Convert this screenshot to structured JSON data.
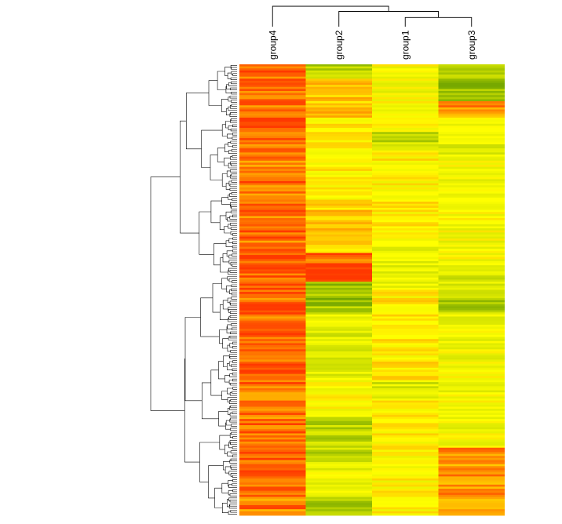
{
  "chart_data": {
    "type": "heatmap",
    "title": "",
    "xlabel": "",
    "ylabel": "",
    "columns": [
      "group4",
      "group2",
      "group1",
      "group3"
    ],
    "column_dendrogram": {
      "merges": [
        {
          "left": "group1",
          "right": "group3",
          "height": 0.45
        },
        {
          "left": "group2",
          "right": "group1+group3",
          "height": 0.75
        },
        {
          "left": "group4",
          "right": "group2+group1+group3",
          "height": 1.0
        }
      ]
    },
    "color_scale": {
      "low": "#6aa000",
      "mid_low": "#cfe000",
      "mid": "#ffff00",
      "mid_high": "#ffb000",
      "high": "#ff3800",
      "range": [
        -1,
        1
      ]
    },
    "row_count": 220,
    "row_dendrogram": {
      "top_cluster_fraction": 0.47
    },
    "column_profiles": [
      {
        "column": "group4",
        "segments": [
          [
            0,
            0.12,
            0.75
          ],
          [
            0.12,
            0.15,
            0.95
          ],
          [
            0.15,
            0.25,
            0.7
          ],
          [
            0.25,
            0.42,
            0.78
          ],
          [
            0.42,
            0.48,
            0.85
          ],
          [
            0.48,
            0.72,
            0.82
          ],
          [
            0.72,
            0.86,
            0.72
          ],
          [
            0.86,
            0.92,
            0.88
          ],
          [
            0.92,
            1.0,
            0.7
          ]
        ]
      },
      {
        "column": "group2",
        "segments": [
          [
            0,
            0.03,
            -0.6
          ],
          [
            0.03,
            0.12,
            0.35
          ],
          [
            0.12,
            0.3,
            0.1
          ],
          [
            0.3,
            0.42,
            0.3
          ],
          [
            0.42,
            0.48,
            0.85
          ],
          [
            0.48,
            0.55,
            -0.7
          ],
          [
            0.55,
            0.7,
            -0.25
          ],
          [
            0.7,
            0.78,
            0.05
          ],
          [
            0.78,
            0.88,
            -0.5
          ],
          [
            0.88,
            0.96,
            -0.15
          ],
          [
            0.96,
            1.0,
            -0.75
          ]
        ]
      },
      {
        "column": "group1",
        "segments": [
          [
            0,
            0.15,
            -0.05
          ],
          [
            0.15,
            0.19,
            -0.45
          ],
          [
            0.19,
            0.4,
            0.1
          ],
          [
            0.4,
            0.5,
            -0.2
          ],
          [
            0.5,
            0.7,
            0.12
          ],
          [
            0.7,
            0.74,
            -0.3
          ],
          [
            0.74,
            1.0,
            0.05
          ]
        ]
      },
      {
        "column": "group3",
        "segments": [
          [
            0,
            0.08,
            -0.7
          ],
          [
            0.08,
            0.12,
            0.6
          ],
          [
            0.12,
            0.2,
            -0.2
          ],
          [
            0.2,
            0.45,
            -0.05
          ],
          [
            0.45,
            0.5,
            -0.3
          ],
          [
            0.5,
            0.55,
            -0.55
          ],
          [
            0.55,
            0.85,
            -0.1
          ],
          [
            0.85,
            1.0,
            0.6
          ]
        ]
      }
    ],
    "grid": false,
    "legend": "none"
  }
}
